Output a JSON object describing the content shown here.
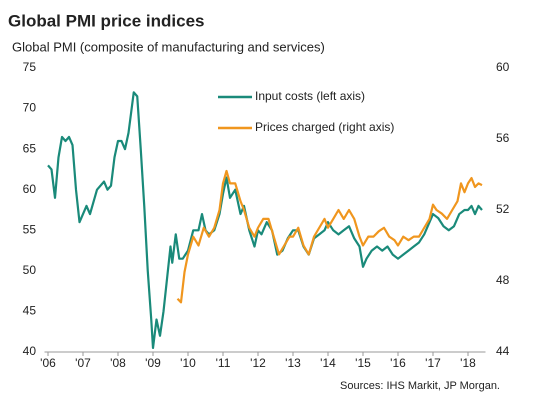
{
  "chart_data": {
    "type": "line",
    "title": "Global PMI price indices",
    "subtitle": "Global  PMI (composite of manufacturing and services)",
    "source": "Sources: IHS Markit, JP Morgan.",
    "xlim": [
      2005.9,
      2018.5
    ],
    "xticks": [
      {
        "value": 2006,
        "label": "'06"
      },
      {
        "value": 2007,
        "label": "'07"
      },
      {
        "value": 2008,
        "label": "'08"
      },
      {
        "value": 2009,
        "label": "'09"
      },
      {
        "value": 2010,
        "label": "'10"
      },
      {
        "value": 2011,
        "label": "'11"
      },
      {
        "value": 2012,
        "label": "'12"
      },
      {
        "value": 2013,
        "label": "'13"
      },
      {
        "value": 2014,
        "label": "'14"
      },
      {
        "value": 2015,
        "label": "'15"
      },
      {
        "value": 2016,
        "label": "'16"
      },
      {
        "value": 2017,
        "label": "'17"
      },
      {
        "value": 2018,
        "label": "'18"
      }
    ],
    "ylim": [
      40,
      75
    ],
    "yticks": [
      40,
      45,
      50,
      55,
      60,
      65,
      70,
      75
    ],
    "y2lim": [
      44,
      60
    ],
    "y2ticks": [
      44,
      48,
      52,
      56,
      60
    ],
    "grid": false,
    "series": [
      {
        "name": "Input costs (left axis)",
        "color": "#1a8a7a",
        "axis": "y",
        "x": [
          2006.0,
          2006.1,
          2006.2,
          2006.3,
          2006.4,
          2006.5,
          2006.6,
          2006.7,
          2006.8,
          2006.9,
          2007.0,
          2007.1,
          2007.2,
          2007.4,
          2007.6,
          2007.7,
          2007.8,
          2007.9,
          2008.0,
          2008.1,
          2008.2,
          2008.3,
          2008.45,
          2008.55,
          2008.65,
          2008.75,
          2008.85,
          2008.95,
          2009.0,
          2009.1,
          2009.2,
          2009.3,
          2009.4,
          2009.5,
          2009.55,
          2009.65,
          2009.75,
          2009.85,
          2010.0,
          2010.15,
          2010.3,
          2010.4,
          2010.5,
          2010.6,
          2010.75,
          2010.9,
          2011.0,
          2011.1,
          2011.2,
          2011.35,
          2011.5,
          2011.6,
          2011.75,
          2011.9,
          2012.0,
          2012.1,
          2012.25,
          2012.4,
          2012.55,
          2012.7,
          2012.85,
          2013.0,
          2013.15,
          2013.3,
          2013.45,
          2013.6,
          2013.75,
          2013.9,
          2014.0,
          2014.15,
          2014.3,
          2014.45,
          2014.6,
          2014.75,
          2014.9,
          2015.0,
          2015.1,
          2015.25,
          2015.4,
          2015.55,
          2015.7,
          2015.85,
          2016.0,
          2016.15,
          2016.3,
          2016.45,
          2016.6,
          2016.75,
          2016.9,
          2017.0,
          2017.15,
          2017.3,
          2017.45,
          2017.6,
          2017.75,
          2017.9,
          2018.0,
          2018.1,
          2018.2,
          2018.3,
          2018.4
        ],
        "values": [
          63,
          62.5,
          59,
          64,
          66.5,
          66,
          66.5,
          65.5,
          60,
          56,
          57,
          58,
          57,
          60,
          61,
          60,
          60.5,
          64,
          66,
          66,
          65,
          67,
          72,
          71.5,
          65,
          58,
          50,
          44,
          40.5,
          44,
          42,
          45,
          49,
          53,
          51,
          54.5,
          51.5,
          51.5,
          52.5,
          55,
          55,
          57,
          55,
          54.5,
          55,
          57,
          59.5,
          61.5,
          59,
          60,
          57,
          58,
          55,
          53,
          55,
          54.5,
          56,
          55,
          52,
          52.5,
          54,
          55,
          55,
          53,
          52,
          54,
          54.5,
          55,
          56,
          55,
          54.5,
          55,
          55.5,
          54,
          53,
          50.5,
          51.5,
          52.5,
          53,
          52.5,
          53,
          52,
          51.5,
          52,
          52.5,
          53,
          53.5,
          54.5,
          56,
          57,
          56.5,
          55.5,
          55,
          55.5,
          57,
          57.5,
          57.5,
          58,
          57,
          58,
          57.5
        ]
      },
      {
        "name": "Prices charged (right axis)",
        "color": "#f0961e",
        "axis": "y2",
        "x": [
          2009.7,
          2009.8,
          2009.9,
          2010.0,
          2010.15,
          2010.3,
          2010.45,
          2010.6,
          2010.75,
          2010.9,
          2011.0,
          2011.1,
          2011.2,
          2011.35,
          2011.5,
          2011.6,
          2011.75,
          2011.9,
          2012.0,
          2012.15,
          2012.3,
          2012.45,
          2012.6,
          2012.75,
          2012.9,
          2013.0,
          2013.15,
          2013.3,
          2013.45,
          2013.6,
          2013.75,
          2013.9,
          2014.0,
          2014.15,
          2014.3,
          2014.45,
          2014.6,
          2014.75,
          2014.9,
          2015.0,
          2015.15,
          2015.3,
          2015.45,
          2015.6,
          2015.75,
          2015.9,
          2016.0,
          2016.15,
          2016.3,
          2016.45,
          2016.6,
          2016.75,
          2016.9,
          2017.0,
          2017.1,
          2017.25,
          2017.4,
          2017.55,
          2017.7,
          2017.8,
          2017.9,
          2018.0,
          2018.1,
          2018.2,
          2018.3,
          2018.4
        ],
        "values": [
          47,
          46.8,
          48.5,
          49.5,
          50.5,
          50,
          51,
          50.5,
          51,
          52,
          53.5,
          54.2,
          53.5,
          53.5,
          52.5,
          52,
          51,
          50.5,
          51,
          51.5,
          51.5,
          50.5,
          49.5,
          50,
          50.5,
          50.5,
          51,
          50,
          49.5,
          50.5,
          51,
          51.5,
          51,
          51.5,
          52,
          51.5,
          52,
          51.5,
          50.5,
          50,
          50.5,
          50.5,
          50.8,
          51,
          50.5,
          50.3,
          50,
          50.5,
          50.3,
          50.5,
          50.5,
          51,
          51.5,
          52.3,
          52,
          51.8,
          51.5,
          52,
          52.5,
          53.5,
          53,
          53.5,
          53.8,
          53.3,
          53.5,
          53.4
        ]
      }
    ]
  }
}
